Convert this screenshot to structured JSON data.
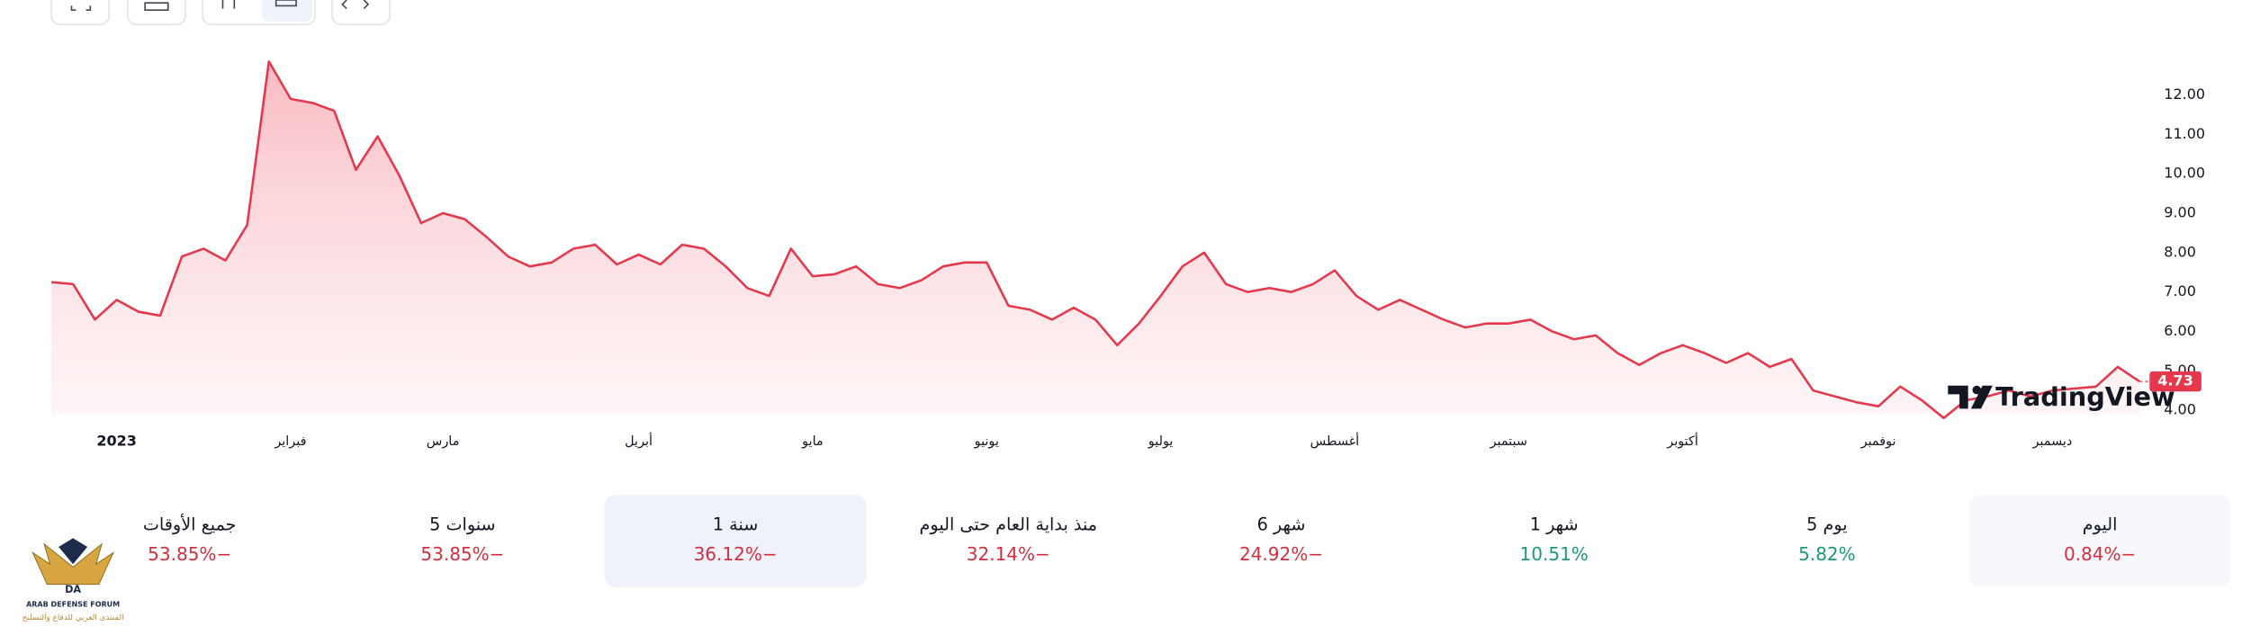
{
  "chart_data": {
    "type": "area-line",
    "categories": [
      null,
      null,
      null,
      "2023",
      null,
      null,
      null,
      null,
      null,
      null,
      null,
      "فبراير",
      null,
      null,
      null,
      null,
      null,
      null,
      "مارس",
      null,
      null,
      null,
      null,
      null,
      null,
      null,
      null,
      "أبريل",
      null,
      null,
      null,
      null,
      null,
      null,
      null,
      "مايو",
      null,
      null,
      null,
      null,
      null,
      null,
      null,
      "يونيو",
      null,
      null,
      null,
      null,
      null,
      null,
      null,
      "يوليو",
      null,
      null,
      null,
      null,
      null,
      null,
      null,
      "أغسطس",
      null,
      null,
      null,
      null,
      null,
      null,
      null,
      "سبتمبر",
      null,
      null,
      null,
      null,
      null,
      null,
      null,
      "أكتوبر",
      null,
      null,
      null,
      null,
      null,
      null,
      null,
      null,
      "نوفمبر",
      null,
      null,
      null,
      null,
      null,
      null,
      null,
      "ديسمبر",
      null,
      null,
      null,
      null
    ],
    "series": [
      {
        "color": "#e5384c",
        "values": [
          7.25,
          7.2,
          6.3,
          6.8,
          6.5,
          6.4,
          7.9,
          8.1,
          7.8,
          8.7,
          12.85,
          11.9,
          11.8,
          11.6,
          10.1,
          10.95,
          9.95,
          8.75,
          9.0,
          8.85,
          8.4,
          7.9,
          7.65,
          7.75,
          8.1,
          8.2,
          7.7,
          7.95,
          7.7,
          8.2,
          8.1,
          7.65,
          7.1,
          6.9,
          8.1,
          7.4,
          7.45,
          7.65,
          7.2,
          7.1,
          7.3,
          7.65,
          7.75,
          7.75,
          6.65,
          6.55,
          6.3,
          6.6,
          6.3,
          5.65,
          6.2,
          6.9,
          7.65,
          8.0,
          7.2,
          7.0,
          7.1,
          7.0,
          7.2,
          7.55,
          6.9,
          6.55,
          6.8,
          6.55,
          6.3,
          6.1,
          6.2,
          6.2,
          6.3,
          6.0,
          5.8,
          5.9,
          5.45,
          5.15,
          5.45,
          5.65,
          5.45,
          5.2,
          5.45,
          5.1,
          5.3,
          4.5,
          4.35,
          4.2,
          4.1,
          4.6,
          4.25,
          3.8,
          4.25,
          4.35,
          4.5,
          4.35,
          4.5,
          4.55,
          4.6,
          5.1,
          4.73
        ]
      }
    ],
    "ylim": [
      3.6,
      13.1
    ],
    "yticks": [
      {
        "value": 4,
        "label": "4.00"
      },
      {
        "value": 5,
        "label": "5.00"
      },
      {
        "value": 6,
        "label": "6.00"
      },
      {
        "value": 7,
        "label": "7.00"
      },
      {
        "value": 8,
        "label": "8.00"
      },
      {
        "value": 9,
        "label": "9.00"
      },
      {
        "value": 10,
        "label": "10.00"
      },
      {
        "value": 11,
        "label": "11.00"
      },
      {
        "value": 12,
        "label": "12.00"
      }
    ],
    "grid": false,
    "logo": "TradingView"
  },
  "performance": [
    {
      "label": "جميع الأوقات",
      "value": "53.85%−",
      "color": "#d3303f"
    },
    {
      "label": "5 سنوات",
      "value": "53.85%−",
      "color": "#d3303f"
    },
    {
      "label": "1 سنة",
      "value": "36.12%−",
      "color": "#d3303f",
      "selected": true
    },
    {
      "label": "منذ بداية العام حتى اليوم",
      "value": "32.14%−",
      "color": "#d3303f"
    },
    {
      "label": "6 شهر",
      "value": "24.92%−",
      "color": "#d3303f"
    },
    {
      "label": "1 شهر",
      "value": "10.51%",
      "color": "#1a9a78"
    },
    {
      "label": "5 يوم",
      "value": "5.82%",
      "color": "#1a9a78"
    },
    {
      "label": "اليوم",
      "value": "0.84%−",
      "color": "#d3303f",
      "current": true
    }
  ],
  "watermark": {
    "initials": "DA",
    "name": "ARAB DEFENSE FORUM",
    "subtitle": "المنتدى العربي للدفاع والتسليح"
  }
}
